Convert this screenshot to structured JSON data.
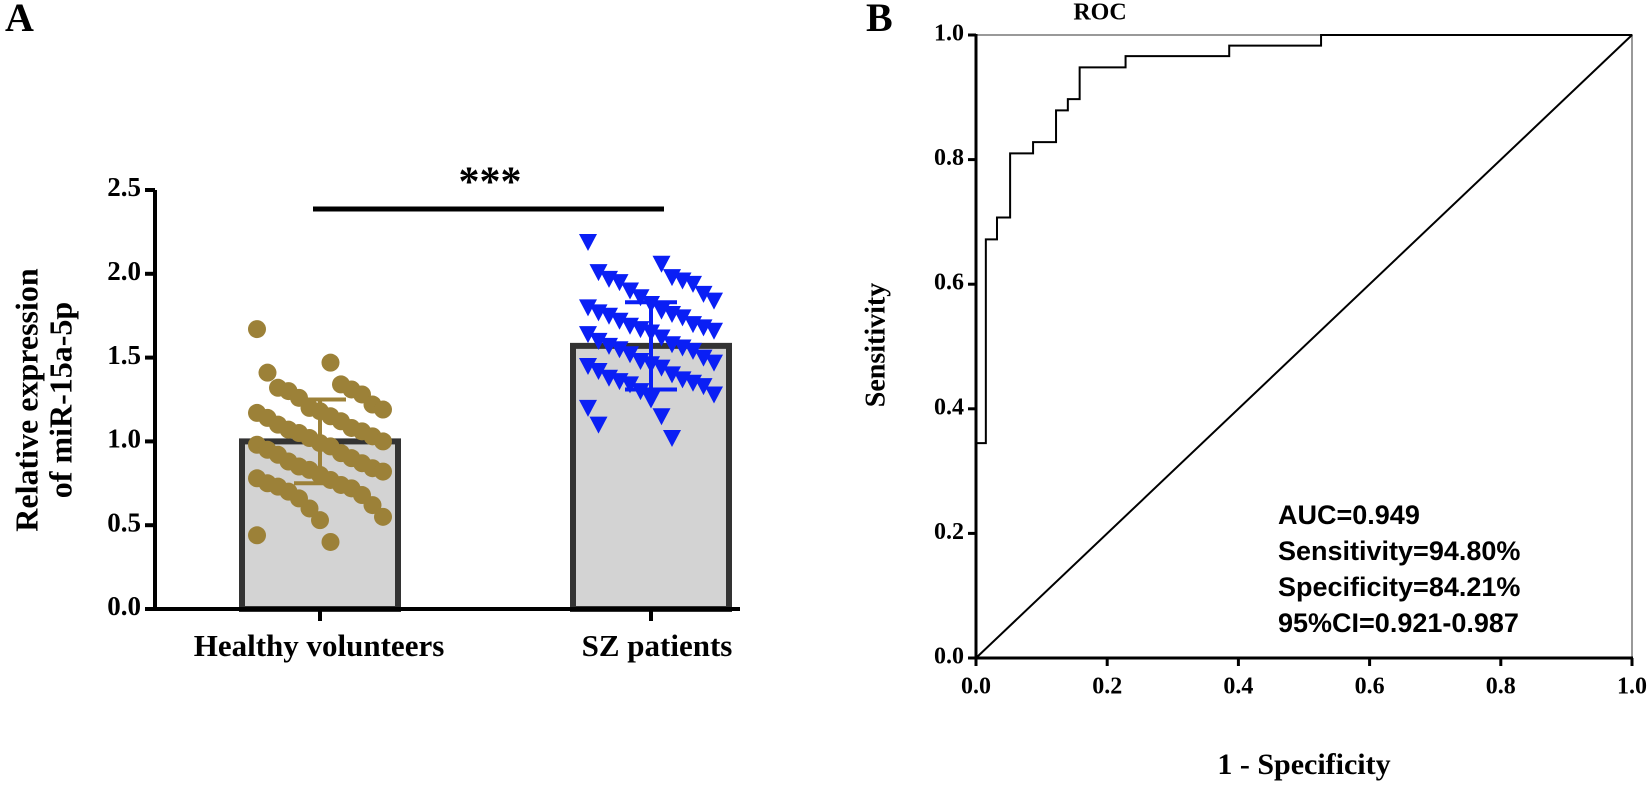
{
  "chart_data": [
    {
      "type": "bar",
      "panel_label": "A",
      "ylabel": [
        "Relative expression",
        "of miR-15a-5p"
      ],
      "categories": [
        "Healthy volunteers",
        "SZ patients"
      ],
      "values": [
        1.0,
        1.57
      ],
      "errors": [
        0.25,
        0.26
      ],
      "bar_color": "#d3d3d3",
      "point_colors": [
        "#9c8138",
        "#0a1ff5"
      ],
      "point_shapes": [
        "circle",
        "triangle"
      ],
      "points": [
        [
          1.67,
          1.47,
          1.41,
          1.34,
          1.32,
          1.31,
          1.3,
          1.28,
          1.26,
          1.22,
          1.2,
          1.19,
          1.18,
          1.17,
          1.15,
          1.14,
          1.12,
          1.1,
          1.08,
          1.07,
          1.06,
          1.05,
          1.03,
          1.02,
          1.0,
          0.99,
          0.98,
          0.97,
          0.95,
          0.93,
          0.92,
          0.9,
          0.88,
          0.87,
          0.85,
          0.84,
          0.83,
          0.82,
          0.8,
          0.78,
          0.77,
          0.75,
          0.74,
          0.73,
          0.72,
          0.7,
          0.68,
          0.66,
          0.62,
          0.6,
          0.55,
          0.53,
          0.44,
          0.4
        ],
        [
          2.19,
          2.06,
          2.01,
          1.98,
          1.97,
          1.96,
          1.95,
          1.94,
          1.9,
          1.88,
          1.86,
          1.84,
          1.82,
          1.8,
          1.78,
          1.77,
          1.76,
          1.75,
          1.74,
          1.72,
          1.7,
          1.69,
          1.68,
          1.67,
          1.66,
          1.65,
          1.64,
          1.62,
          1.6,
          1.58,
          1.57,
          1.56,
          1.55,
          1.54,
          1.52,
          1.5,
          1.48,
          1.47,
          1.46,
          1.45,
          1.44,
          1.42,
          1.4,
          1.38,
          1.37,
          1.36,
          1.35,
          1.34,
          1.33,
          1.3,
          1.28,
          1.25,
          1.2,
          1.15,
          1.1,
          1.02
        ]
      ],
      "significance": "***",
      "ylim": [
        0,
        2.5
      ],
      "yticks": [
        {
          "value": 0,
          "label": "0.0"
        },
        {
          "value": 0.5,
          "label": "0.5"
        },
        {
          "value": 1,
          "label": "1.0"
        },
        {
          "value": 1.5,
          "label": "1.5"
        },
        {
          "value": 2,
          "label": "2.0"
        },
        {
          "value": 2.5,
          "label": "2.5"
        }
      ]
    },
    {
      "type": "line",
      "panel_label": "B",
      "title": "ROC",
      "xlabel": "1 - Specificity",
      "ylabel": "Sensitivity",
      "x": [
        0,
        0,
        0.015,
        0.015,
        0.032,
        0.032,
        0.052,
        0.052,
        0.087,
        0.087,
        0.122,
        0.122,
        0.14,
        0.14,
        0.158,
        0.158,
        0.228,
        0.228,
        0.386,
        0.386,
        0.526,
        0.526,
        1
      ],
      "y": [
        0,
        0.345,
        0.345,
        0.672,
        0.672,
        0.707,
        0.707,
        0.81,
        0.81,
        0.828,
        0.828,
        0.879,
        0.879,
        0.897,
        0.897,
        0.948,
        0.948,
        0.966,
        0.966,
        0.983,
        0.983,
        1,
        1
      ],
      "reference_line": {
        "x": [
          0,
          1
        ],
        "y": [
          0,
          1
        ]
      },
      "color": "#000000",
      "annotations": [
        "AUC=0.949",
        "Sensitivity=94.80%",
        "Specificity=84.21%",
        "95%CI=0.921-0.987"
      ],
      "xlim": [
        0,
        1
      ],
      "ylim": [
        0,
        1
      ],
      "xticks": [
        {
          "value": 0,
          "label": "0.0"
        },
        {
          "value": 0.2,
          "label": "0.2"
        },
        {
          "value": 0.4,
          "label": "0.4"
        },
        {
          "value": 0.6,
          "label": "0.6"
        },
        {
          "value": 0.8,
          "label": "0.8"
        },
        {
          "value": 1,
          "label": "1.0"
        }
      ],
      "yticks": [
        {
          "value": 0,
          "label": "0.0"
        },
        {
          "value": 0.2,
          "label": "0.2"
        },
        {
          "value": 0.4,
          "label": "0.4"
        },
        {
          "value": 0.6,
          "label": "0.6"
        },
        {
          "value": 0.8,
          "label": "0.8"
        },
        {
          "value": 1,
          "label": "1.0"
        }
      ]
    }
  ]
}
